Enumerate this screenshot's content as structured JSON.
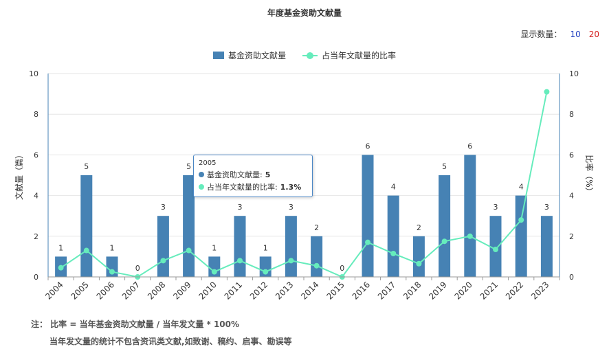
{
  "count_control": {
    "label": "显示数量：",
    "options": [
      "10",
      "20"
    ],
    "colors": [
      "#1f3fbf",
      "#d42020"
    ]
  },
  "chart_data": {
    "type": "bar",
    "title": "年度基金资助文献量",
    "ylabel": "文献量（篇）",
    "ylabel_right": "比率（%）",
    "ylim": [
      0,
      10
    ],
    "ylim_right": [
      0,
      10
    ],
    "yticks": [
      "0",
      "2",
      "4",
      "6",
      "8",
      "10"
    ],
    "categories": [
      "2004",
      "2005",
      "2006",
      "2007",
      "2008",
      "2009",
      "2010",
      "2011",
      "2012",
      "2013",
      "2014",
      "2015",
      "2016",
      "2017",
      "2018",
      "2019",
      "2020",
      "2021",
      "2022",
      "2023"
    ],
    "series": [
      {
        "name": "基金资助文献量",
        "type": "bar",
        "color": "#4682b4",
        "values": [
          1,
          5,
          1,
          0,
          3,
          5,
          1,
          3,
          1,
          3,
          2,
          0,
          6,
          4,
          2,
          5,
          6,
          3,
          4,
          3
        ],
        "labels": [
          "1",
          "5",
          "1",
          "0",
          "3",
          "5",
          "1",
          "3",
          "1",
          "3",
          "2",
          "0",
          "6",
          "4",
          "2",
          "5",
          "6",
          "3",
          "4",
          "3"
        ]
      },
      {
        "name": "占当年文献量的比率",
        "type": "line",
        "color": "#66ecbc",
        "values": [
          0.45,
          1.3,
          0.25,
          0.0,
          0.8,
          1.3,
          0.25,
          0.8,
          0.25,
          0.8,
          0.55,
          0.0,
          1.7,
          1.15,
          0.65,
          1.75,
          2.0,
          1.35,
          2.8,
          9.1
        ]
      }
    ],
    "legend": "top-center",
    "grid": true
  },
  "tooltip": {
    "title": "2005",
    "rows": [
      {
        "label": "基金资助文献量:",
        "value": "5",
        "color": "#4682b4"
      },
      {
        "label": "占当年文献量的比率:",
        "value": "1.3%",
        "color": "#66ecbc"
      }
    ]
  },
  "note": {
    "line1": "注：  比率 = 当年基金资助文献量 / 当年发文量 * 100%",
    "line2": "当年发文量的统计不包含资讯类文献,如致谢、稿约、启事、勘误等"
  }
}
